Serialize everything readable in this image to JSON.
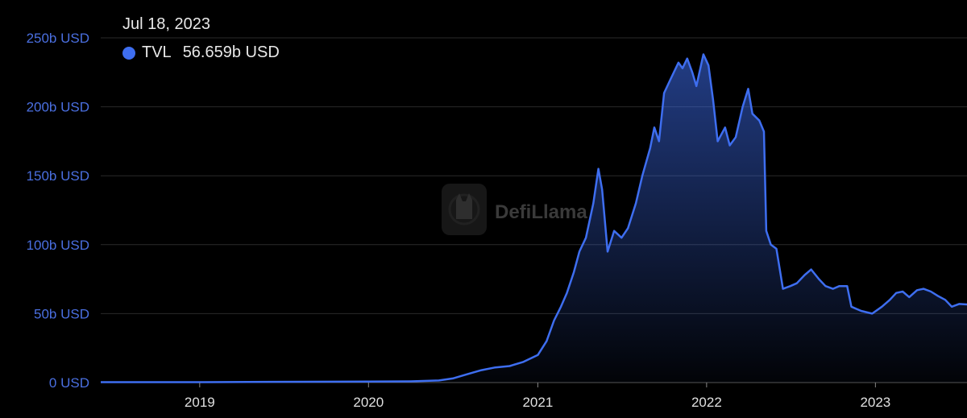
{
  "tooltip": {
    "date": "Jul 18, 2023",
    "series": "TVL",
    "value": "56.659b USD"
  },
  "colors": {
    "line": "#3e6ef0",
    "axis_label": "#4a6fe0",
    "grid": "#2a2a2a",
    "watermark": "#6b6b6b"
  },
  "watermark": {
    "text": "DefiLlama",
    "icon": "llama-logo-icon"
  },
  "chart_data": {
    "type": "area",
    "title": "",
    "xlabel": "",
    "ylabel": "",
    "ylim": [
      0,
      250
    ],
    "y_unit": "b USD",
    "y_ticks": [
      0,
      50,
      100,
      150,
      200,
      250
    ],
    "y_tick_labels": [
      "0 USD",
      "50b USD",
      "100b USD",
      "150b USD",
      "200b USD",
      "250b USD"
    ],
    "x_range": [
      "2018-06-01",
      "2023-07-18"
    ],
    "x_ticks": [
      "2019-01-01",
      "2020-01-01",
      "2021-01-01",
      "2022-01-01",
      "2023-01-01"
    ],
    "x_tick_labels": [
      "2019",
      "2020",
      "2021",
      "2022",
      "2023"
    ],
    "grid": true,
    "series": [
      {
        "name": "TVL",
        "points": [
          [
            "2018-06-01",
            0.3
          ],
          [
            "2019-01-01",
            0.3
          ],
          [
            "2019-06-01",
            0.5
          ],
          [
            "2020-01-01",
            0.7
          ],
          [
            "2020-04-01",
            0.9
          ],
          [
            "2020-06-01",
            1.5
          ],
          [
            "2020-07-01",
            3
          ],
          [
            "2020-08-01",
            6
          ],
          [
            "2020-09-01",
            9
          ],
          [
            "2020-10-01",
            11
          ],
          [
            "2020-11-01",
            12
          ],
          [
            "2020-12-01",
            15
          ],
          [
            "2021-01-01",
            20
          ],
          [
            "2021-01-20",
            30
          ],
          [
            "2021-02-05",
            45
          ],
          [
            "2021-02-20",
            55
          ],
          [
            "2021-03-05",
            65
          ],
          [
            "2021-03-20",
            80
          ],
          [
            "2021-04-01",
            95
          ],
          [
            "2021-04-15",
            105
          ],
          [
            "2021-05-01",
            130
          ],
          [
            "2021-05-12",
            155
          ],
          [
            "2021-05-20",
            140
          ],
          [
            "2021-06-01",
            95
          ],
          [
            "2021-06-15",
            110
          ],
          [
            "2021-07-01",
            105
          ],
          [
            "2021-07-15",
            112
          ],
          [
            "2021-08-01",
            130
          ],
          [
            "2021-08-15",
            150
          ],
          [
            "2021-09-01",
            170
          ],
          [
            "2021-09-10",
            185
          ],
          [
            "2021-09-20",
            175
          ],
          [
            "2021-10-01",
            210
          ],
          [
            "2021-10-15",
            220
          ],
          [
            "2021-11-01",
            232
          ],
          [
            "2021-11-10",
            228
          ],
          [
            "2021-11-20",
            235
          ],
          [
            "2021-12-01",
            225
          ],
          [
            "2021-12-10",
            215
          ],
          [
            "2021-12-25",
            238
          ],
          [
            "2022-01-05",
            230
          ],
          [
            "2022-01-15",
            205
          ],
          [
            "2022-01-25",
            175
          ],
          [
            "2022-02-10",
            185
          ],
          [
            "2022-02-20",
            172
          ],
          [
            "2022-03-05",
            178
          ],
          [
            "2022-03-20",
            200
          ],
          [
            "2022-04-01",
            213
          ],
          [
            "2022-04-10",
            195
          ],
          [
            "2022-04-25",
            190
          ],
          [
            "2022-05-05",
            182
          ],
          [
            "2022-05-10",
            110
          ],
          [
            "2022-05-20",
            100
          ],
          [
            "2022-06-01",
            97
          ],
          [
            "2022-06-15",
            68
          ],
          [
            "2022-07-01",
            70
          ],
          [
            "2022-07-15",
            72
          ],
          [
            "2022-08-01",
            78
          ],
          [
            "2022-08-15",
            82
          ],
          [
            "2022-09-01",
            75
          ],
          [
            "2022-09-15",
            70
          ],
          [
            "2022-10-01",
            68
          ],
          [
            "2022-10-15",
            70
          ],
          [
            "2022-11-01",
            70
          ],
          [
            "2022-11-10",
            55
          ],
          [
            "2022-12-01",
            52
          ],
          [
            "2022-12-25",
            50
          ],
          [
            "2023-01-15",
            55
          ],
          [
            "2023-02-01",
            60
          ],
          [
            "2023-02-15",
            65
          ],
          [
            "2023-03-01",
            66
          ],
          [
            "2023-03-15",
            62
          ],
          [
            "2023-04-01",
            67
          ],
          [
            "2023-04-15",
            68
          ],
          [
            "2023-05-01",
            66
          ],
          [
            "2023-05-15",
            63
          ],
          [
            "2023-06-01",
            60
          ],
          [
            "2023-06-15",
            55
          ],
          [
            "2023-07-01",
            57
          ],
          [
            "2023-07-18",
            56.659
          ]
        ]
      }
    ]
  }
}
